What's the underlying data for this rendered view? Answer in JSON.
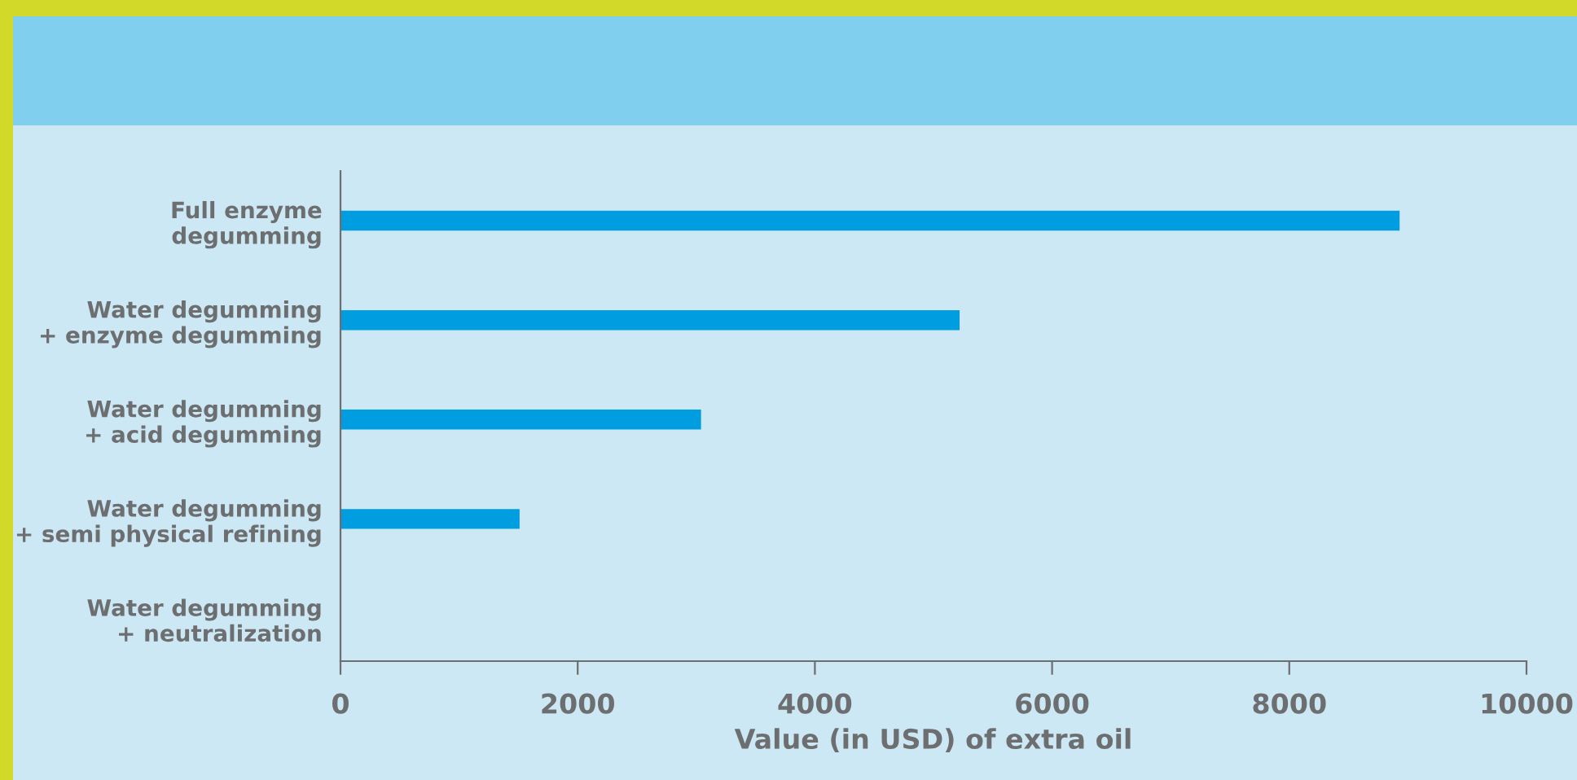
{
  "chart_data": {
    "type": "bar",
    "orientation": "horizontal",
    "xlabel": "Value (in USD) of extra oil",
    "categories": [
      "Full enzyme\ndegumming",
      "Water degumming\n+ enzyme degumming",
      "Water degumming\n+ acid degumming",
      "Water degumming\n+ semi physical refining",
      "Water degumming\n+ neutralization"
    ],
    "values": [
      8930,
      5220,
      3040,
      1510,
      0
    ],
    "color": "#009ee0",
    "xlim": [
      0,
      10000
    ],
    "xticks": [
      0,
      2000,
      4000,
      6000,
      8000,
      10000
    ],
    "grid": false
  }
}
